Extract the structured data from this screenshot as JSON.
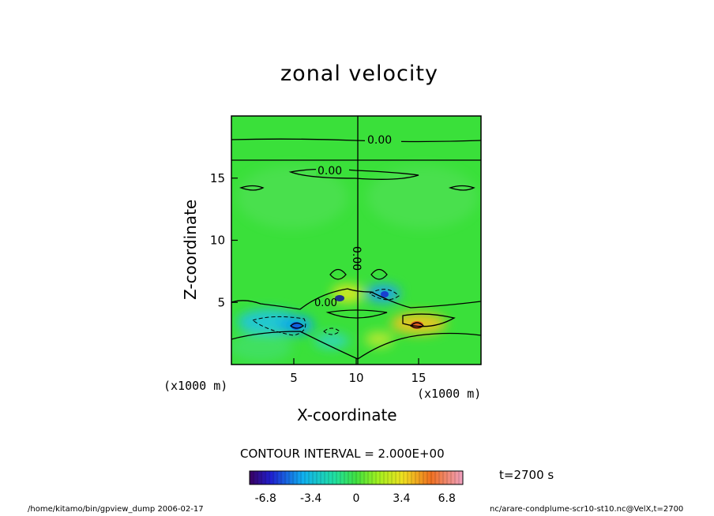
{
  "chart_data": {
    "type": "heatmap",
    "title": "zonal velocity",
    "xlabel": "X-coordinate",
    "ylabel": "Z-coordinate",
    "x_unit": "(x1000 m)",
    "z_unit": "(x1000 m)",
    "xlim": [
      0,
      20
    ],
    "ylim": [
      0,
      20
    ],
    "x_ticks": [
      5,
      10,
      15
    ],
    "y_ticks": [
      5,
      10,
      15
    ],
    "contour_labels": [
      "0.00",
      "0.00",
      "0.00",
      "0.00"
    ],
    "contour_interval_text": "CONTOUR INTERVAL = 2.000E+00",
    "colorbar": {
      "ticks": [
        -6.8,
        -3.4,
        0,
        3.4,
        6.8
      ],
      "min": -8,
      "max": 8
    },
    "time_text": "t=2700 s"
  },
  "footer": {
    "left": "/home/kitamo/bin/gpview_dump  2006-02-17",
    "right": "nc/arare-condplume-scr10-st10.nc@VelX,t=2700"
  }
}
